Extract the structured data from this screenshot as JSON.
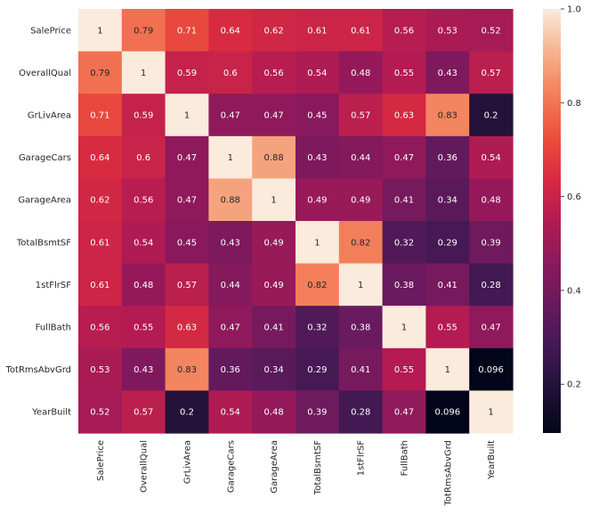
{
  "chart_data": {
    "type": "heatmap",
    "title": "",
    "xlabel": "",
    "ylabel": "",
    "labels": [
      "SalePrice",
      "OverallQual",
      "GrLivArea",
      "GarageCars",
      "GarageArea",
      "TotalBsmtSF",
      "1stFlrSF",
      "FullBath",
      "TotRmsAbvGrd",
      "YearBuilt"
    ],
    "values": [
      [
        1,
        0.79,
        0.71,
        0.64,
        0.62,
        0.61,
        0.61,
        0.56,
        0.53,
        0.52
      ],
      [
        0.79,
        1,
        0.59,
        0.6,
        0.56,
        0.54,
        0.48,
        0.55,
        0.43,
        0.57
      ],
      [
        0.71,
        0.59,
        1,
        0.47,
        0.47,
        0.45,
        0.57,
        0.63,
        0.83,
        0.2
      ],
      [
        0.64,
        0.6,
        0.47,
        1,
        0.88,
        0.43,
        0.44,
        0.47,
        0.36,
        0.54
      ],
      [
        0.62,
        0.56,
        0.47,
        0.88,
        1,
        0.49,
        0.49,
        0.41,
        0.34,
        0.48
      ],
      [
        0.61,
        0.54,
        0.45,
        0.43,
        0.49,
        1,
        0.82,
        0.32,
        0.29,
        0.39
      ],
      [
        0.61,
        0.48,
        0.57,
        0.44,
        0.49,
        0.82,
        1,
        0.38,
        0.41,
        0.28
      ],
      [
        0.56,
        0.55,
        0.63,
        0.47,
        0.41,
        0.32,
        0.38,
        1,
        0.55,
        0.47
      ],
      [
        0.53,
        0.43,
        0.83,
        0.36,
        0.34,
        0.29,
        0.41,
        0.55,
        1,
        0.096
      ],
      [
        0.52,
        0.57,
        0.2,
        0.54,
        0.48,
        0.39,
        0.28,
        0.47,
        0.096,
        1
      ]
    ],
    "colorbar": {
      "min": 0.096,
      "max": 1,
      "ticks": [
        0.2,
        0.4,
        0.6,
        0.8,
        1.0
      ],
      "tick_labels": [
        "0.2",
        "0.4",
        "0.6",
        "0.8",
        "1.0"
      ]
    },
    "colormap": "rocket",
    "annotated": true
  }
}
